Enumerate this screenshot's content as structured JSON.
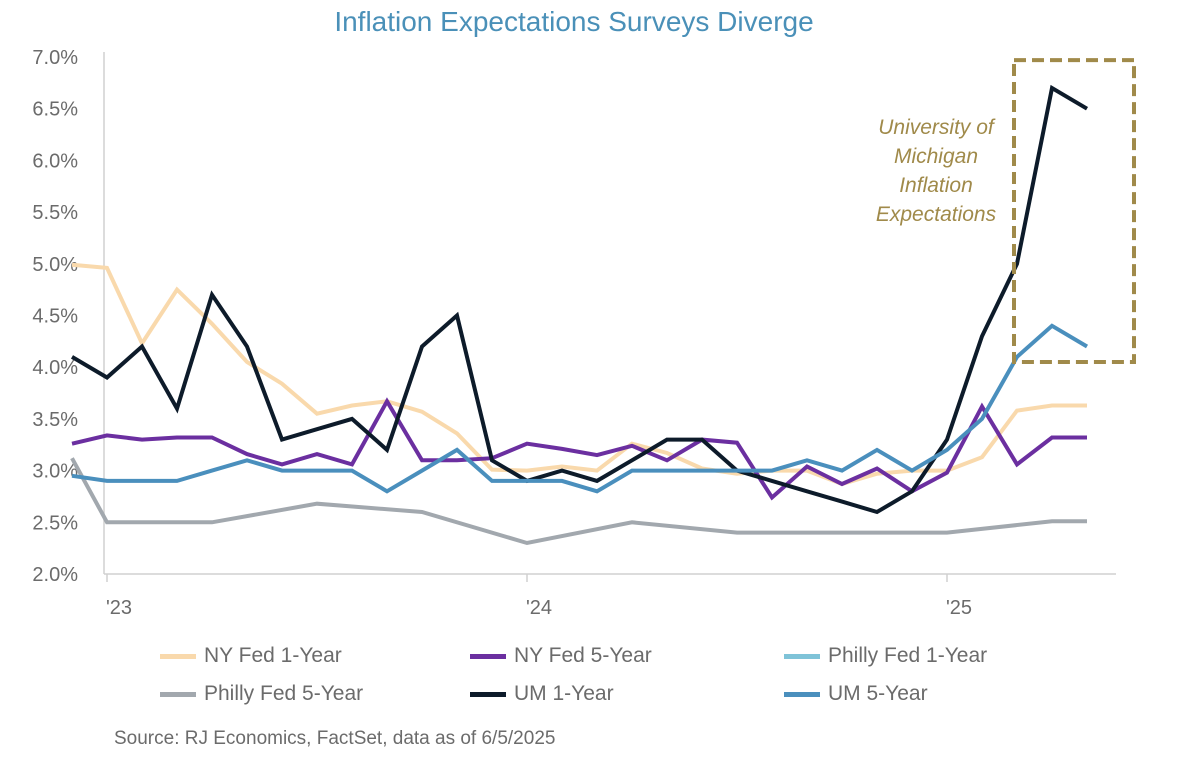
{
  "chart_data": {
    "type": "line",
    "title": "Inflation Expectations Surveys Diverge",
    "x_range": [
      "2023-01",
      "2025-05"
    ],
    "x_ticks": [
      {
        "x": "2023-01",
        "label": "'23"
      },
      {
        "x": "2024-01",
        "label": "'24"
      },
      {
        "x": "2025-01",
        "label": "'25"
      }
    ],
    "ylim": [
      2.0,
      7.0
    ],
    "y_ticks": [
      2.0,
      2.5,
      3.0,
      3.5,
      4.0,
      4.5,
      5.0,
      5.5,
      6.0,
      6.5,
      7.0
    ],
    "y_tick_labels": [
      "2.0%",
      "2.5%",
      "3.0%",
      "3.5%",
      "4.0%",
      "4.5%",
      "5.0%",
      "5.5%",
      "6.0%",
      "6.5%",
      "7.0%"
    ],
    "grid": false,
    "legend_position": "bottom",
    "series": [
      {
        "name": "NY Fed 1-Year",
        "color": "#f9d9ac",
        "x": [
          "2022-12",
          "2023-01",
          "2023-02",
          "2023-03",
          "2023-04",
          "2023-05",
          "2023-06",
          "2023-07",
          "2023-08",
          "2023-09",
          "2023-10",
          "2023-11",
          "2023-12",
          "2024-01",
          "2024-02",
          "2024-03",
          "2024-04",
          "2024-05",
          "2024-06",
          "2024-07",
          "2024-08",
          "2024-09",
          "2024-10",
          "2024-11",
          "2024-12",
          "2025-01",
          "2025-02",
          "2025-03",
          "2025-04",
          "2025-05"
        ],
        "values": [
          4.99,
          4.96,
          4.23,
          4.75,
          4.42,
          4.05,
          3.84,
          3.55,
          3.63,
          3.67,
          3.57,
          3.36,
          3.01,
          3.0,
          3.04,
          3.0,
          3.26,
          3.17,
          3.02,
          2.97,
          3.0,
          3.0,
          2.87,
          2.97,
          3.0,
          3.0,
          3.13,
          3.58,
          3.63,
          3.63
        ]
      },
      {
        "name": "NY Fed 5-Year",
        "color": "#6b2fa0",
        "x": [
          "2022-12",
          "2023-01",
          "2023-02",
          "2023-03",
          "2023-04",
          "2023-05",
          "2023-06",
          "2023-07",
          "2023-08",
          "2023-09",
          "2023-10",
          "2023-11",
          "2023-12",
          "2024-01",
          "2024-02",
          "2024-03",
          "2024-04",
          "2024-05",
          "2024-06",
          "2024-07",
          "2024-08",
          "2024-09",
          "2024-10",
          "2024-11",
          "2024-12",
          "2025-01",
          "2025-02",
          "2025-03",
          "2025-04",
          "2025-05"
        ],
        "values": [
          3.26,
          3.34,
          3.3,
          3.32,
          3.32,
          3.16,
          3.06,
          3.16,
          3.06,
          3.67,
          3.1,
          3.1,
          3.12,
          3.26,
          3.21,
          3.15,
          3.24,
          3.1,
          3.3,
          3.27,
          2.74,
          3.04,
          2.87,
          3.02,
          2.8,
          2.98,
          3.62,
          3.06,
          3.32,
          3.32
        ]
      },
      {
        "name": "Philly Fed 1-Year",
        "color": "#7fc3d8",
        "x": [],
        "values": []
      },
      {
        "name": "Philly Fed 5-Year",
        "color": "#a2a8ae",
        "x": [
          "2022-12",
          "2023-01",
          "2023-04",
          "2023-07",
          "2023-10",
          "2024-01",
          "2024-04",
          "2024-07",
          "2024-10",
          "2025-01",
          "2025-04",
          "2025-05"
        ],
        "values": [
          3.12,
          2.5,
          2.5,
          2.68,
          2.6,
          2.3,
          2.5,
          2.4,
          2.4,
          2.4,
          2.51,
          2.51
        ]
      },
      {
        "name": "UM 1-Year",
        "color": "#0d1b2a",
        "x": [
          "2022-12",
          "2023-01",
          "2023-02",
          "2023-03",
          "2023-04",
          "2023-05",
          "2023-06",
          "2023-07",
          "2023-08",
          "2023-09",
          "2023-10",
          "2023-11",
          "2023-12",
          "2024-01",
          "2024-02",
          "2024-03",
          "2024-04",
          "2024-05",
          "2024-06",
          "2024-07",
          "2024-08",
          "2024-09",
          "2024-10",
          "2024-11",
          "2024-12",
          "2025-01",
          "2025-02",
          "2025-03",
          "2025-04",
          "2025-05"
        ],
        "values": [
          4.1,
          3.9,
          4.2,
          3.6,
          4.7,
          4.2,
          3.3,
          3.4,
          3.5,
          3.2,
          4.2,
          4.5,
          3.1,
          2.9,
          3.0,
          2.9,
          3.1,
          3.3,
          3.3,
          3.0,
          2.9,
          2.8,
          2.7,
          2.6,
          2.8,
          3.3,
          4.3,
          5.0,
          6.7,
          6.5
        ]
      },
      {
        "name": "UM 5-Year",
        "color": "#4a8fbd",
        "x": [
          "2022-12",
          "2023-01",
          "2023-02",
          "2023-03",
          "2023-04",
          "2023-05",
          "2023-06",
          "2023-07",
          "2023-08",
          "2023-09",
          "2023-10",
          "2023-11",
          "2023-12",
          "2024-01",
          "2024-02",
          "2024-03",
          "2024-04",
          "2024-05",
          "2024-06",
          "2024-07",
          "2024-08",
          "2024-09",
          "2024-10",
          "2024-11",
          "2024-12",
          "2025-01",
          "2025-02",
          "2025-03",
          "2025-04",
          "2025-05"
        ],
        "values": [
          2.95,
          2.9,
          2.9,
          2.9,
          3.0,
          3.1,
          3.0,
          3.0,
          3.0,
          2.8,
          3.0,
          3.2,
          2.9,
          2.9,
          2.9,
          2.8,
          3.0,
          3.0,
          3.0,
          3.0,
          3.0,
          3.1,
          3.0,
          3.2,
          3.0,
          3.2,
          3.5,
          4.1,
          4.4,
          4.2
        ]
      }
    ],
    "annotation": {
      "lines": [
        "University of",
        "Michigan",
        "Inflation",
        "Expectations"
      ],
      "color": "#a08a4a",
      "box_x": [
        "2025-03",
        "2025-05"
      ],
      "box_y": [
        4.05,
        6.97
      ]
    },
    "source": "Source: RJ Economics, FactSet, data as of 6/5/2025"
  }
}
